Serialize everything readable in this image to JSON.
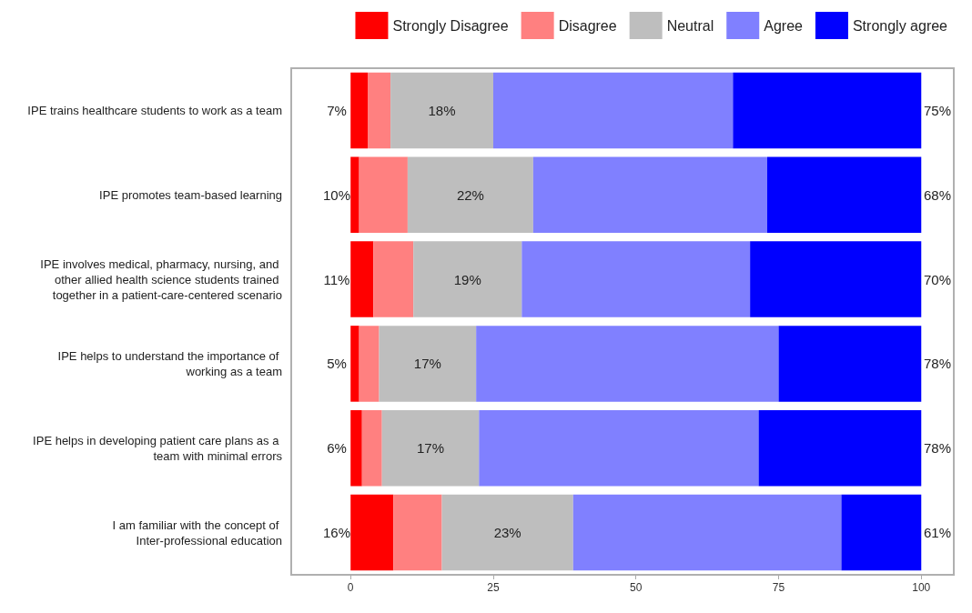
{
  "chart_data": {
    "type": "bar",
    "orientation": "horizontal",
    "stacked": true,
    "categories": [
      "IPE trains healthcare students to work as a team",
      "IPE promotes team-based learning",
      "IPE involves medical, pharmacy, nursing, and other allied health science students trained together in a patient-care-centered scenario",
      "IPE helps to understand the importance of working as a team",
      "IPE helps in developing patient care plans as a team with minimal errors",
      "I am familiar with the concept of Inter-professional education"
    ],
    "series": [
      {
        "name": "Strongly Disagree",
        "color": "#ff0000",
        "values": [
          3,
          1.5,
          4,
          1.5,
          2,
          7.5
        ]
      },
      {
        "name": "Disagree",
        "color": "#ff8080",
        "values": [
          4,
          8.5,
          7,
          3.5,
          3.5,
          8.5
        ]
      },
      {
        "name": "Neutral",
        "color": "#bebebe",
        "values": [
          18,
          22,
          19,
          17,
          17,
          23
        ],
        "value_labels": [
          "18%",
          "22%",
          "19%",
          "17%",
          "17%",
          "23%"
        ]
      },
      {
        "name": "Agree",
        "color": "#8080ff",
        "values": [
          42,
          41,
          40,
          53,
          49,
          47
        ]
      },
      {
        "name": "Strongly agree",
        "color": "#0000ff",
        "values": [
          33,
          27,
          30,
          25,
          28.5,
          14
        ]
      }
    ],
    "annotations": [
      "7%",
      "10%",
      "11%",
      "5%",
      "6%",
      "16%",
      "75%",
      "68%",
      "70%",
      "78%",
      "78%",
      "61%"
    ],
    "xlim": [
      -10.4,
      105.7
    ],
    "xticks": [
      0,
      25,
      50,
      75,
      100
    ],
    "grid": false,
    "legend": "top right"
  }
}
